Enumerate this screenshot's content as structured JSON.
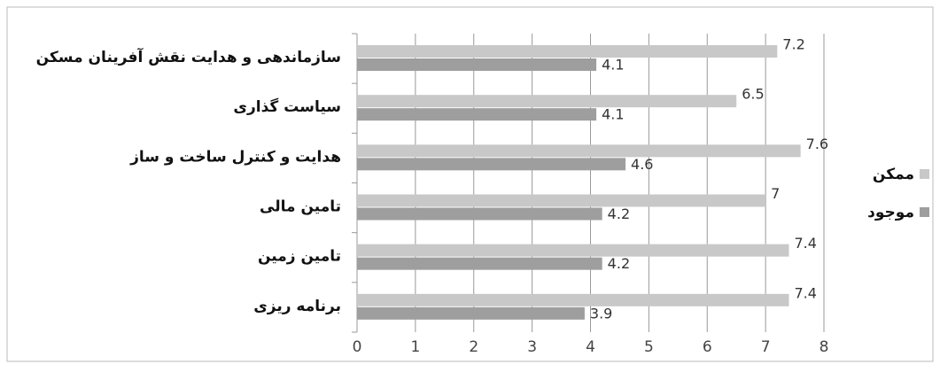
{
  "chart_data": {
    "type": "bar",
    "orientation": "horizontal",
    "categories": [
      "سازماندهی و هدایت نقش آفرینان مسکن",
      "سیاست گذاری",
      "هدایت و کنترل ساخت و ساز",
      "تامین مالی",
      "تامین زمین",
      "برنامه ریزی"
    ],
    "series": [
      {
        "name": "ممکن",
        "color": "#c8c8c8",
        "values": [
          7.2,
          6.5,
          7.6,
          7,
          7.4,
          7.4
        ]
      },
      {
        "name": "موجود",
        "color": "#9e9e9e",
        "values": [
          4.1,
          4.1,
          4.6,
          4.2,
          4.2,
          3.9
        ]
      }
    ],
    "xlim": [
      0,
      8
    ],
    "xticks": [
      0,
      1,
      2,
      3,
      4,
      5,
      6,
      7,
      8
    ],
    "grid": true,
    "legend": "right"
  }
}
